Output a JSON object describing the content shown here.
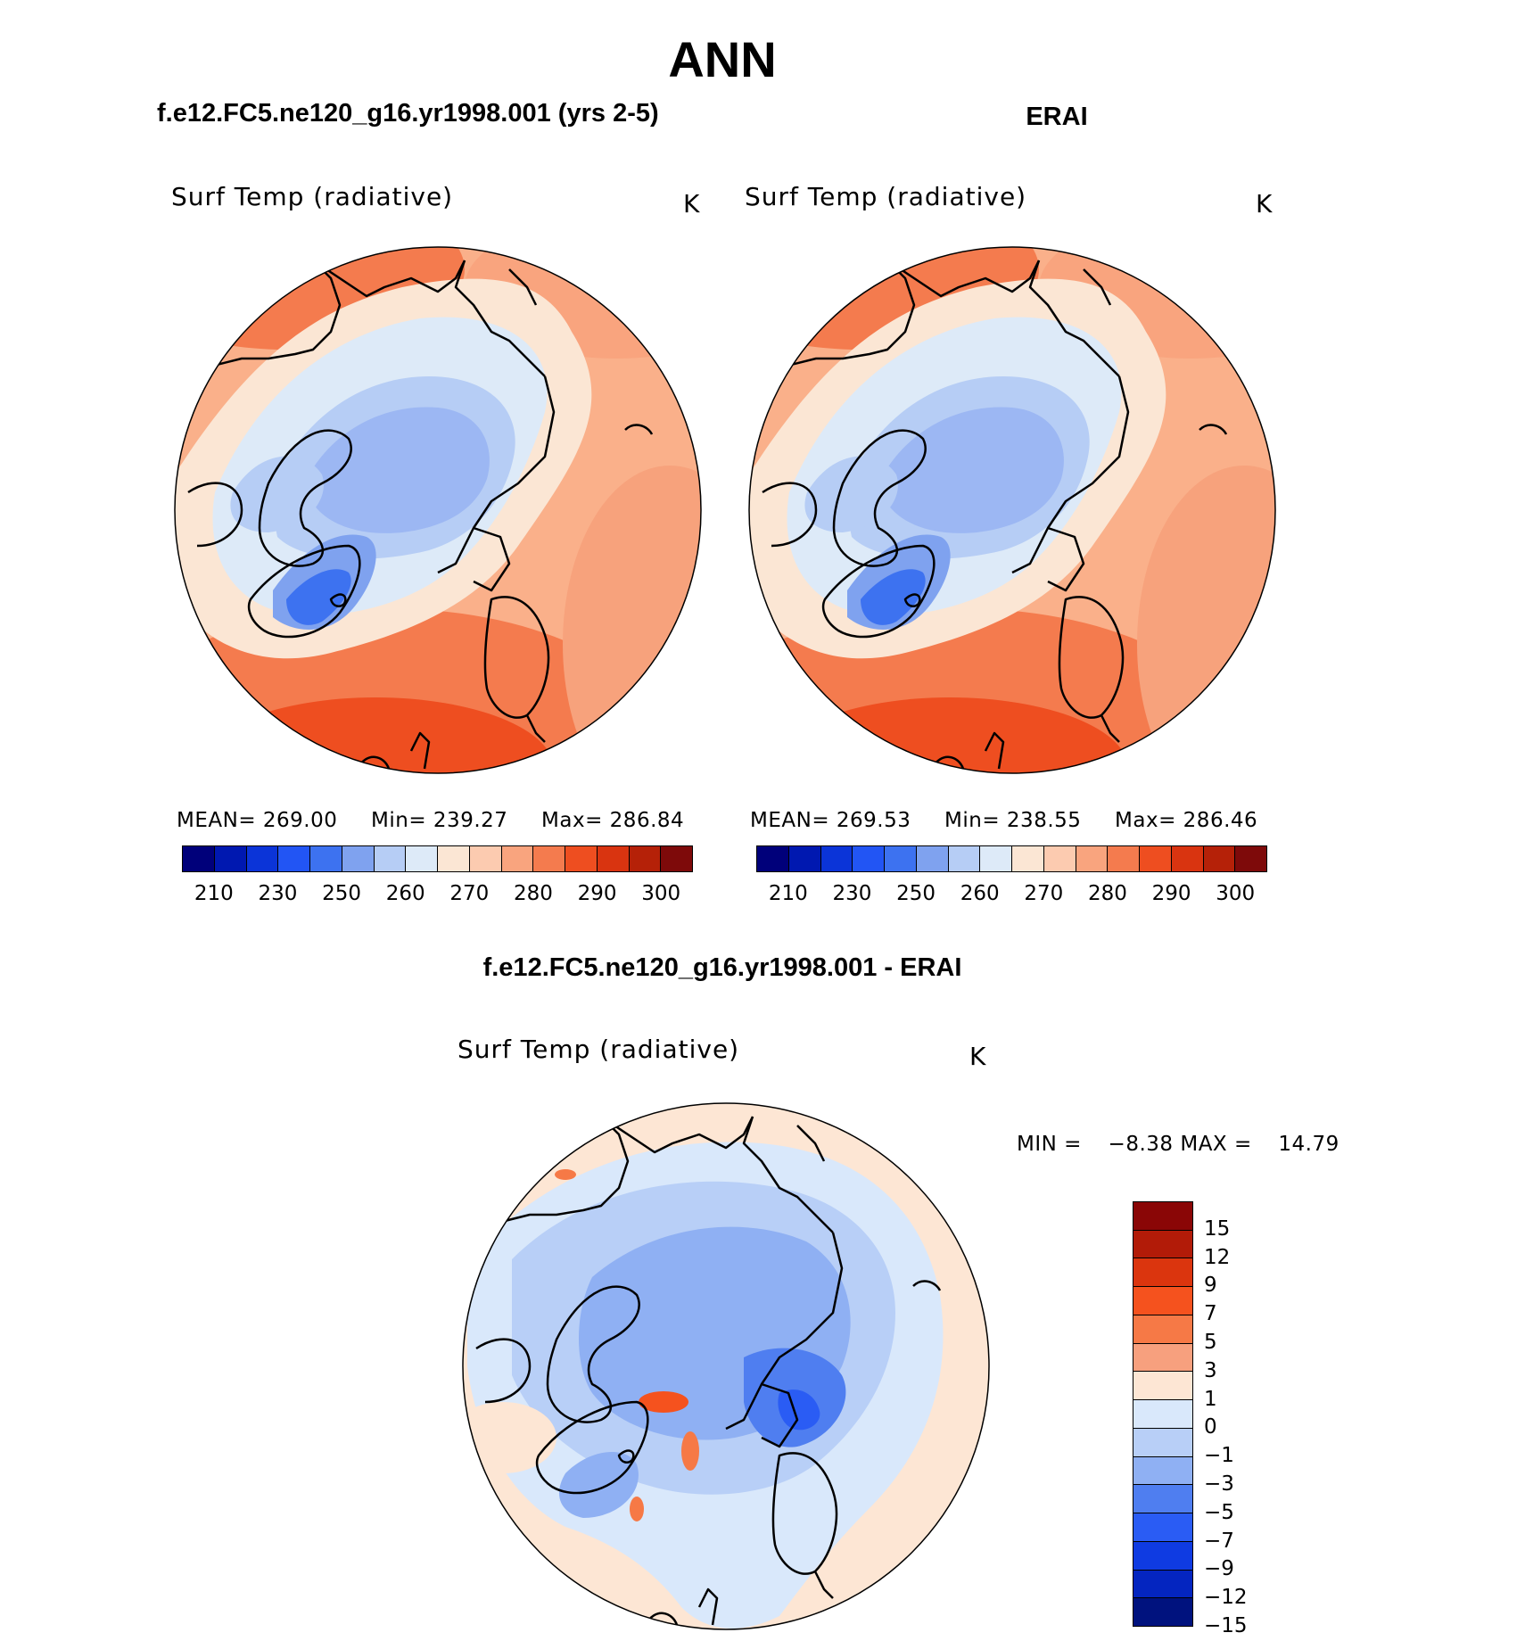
{
  "main_title": "ANN",
  "panels": [
    {
      "title": "f.e12.FC5.ne120_g16.yr1998.001 (yrs 2-5)",
      "variable": "Surf Temp (radiative)",
      "units": "K",
      "stats": {
        "mean_label": "MEAN=",
        "mean": "269.00",
        "min_label": "Min=",
        "min": "239.27",
        "max_label": "Max=",
        "max": "286.84"
      },
      "colorbar_ticks": [
        "210",
        "230",
        "250",
        "260",
        "270",
        "280",
        "290",
        "300"
      ]
    },
    {
      "title": "ERAI",
      "variable": "Surf Temp (radiative)",
      "units": "K",
      "stats": {
        "mean_label": "MEAN=",
        "mean": "269.53",
        "min_label": "Min=",
        "min": "238.55",
        "max_label": "Max=",
        "max": "286.46"
      },
      "colorbar_ticks": [
        "210",
        "230",
        "250",
        "260",
        "270",
        "280",
        "290",
        "300"
      ]
    }
  ],
  "difference": {
    "title": "f.e12.FC5.ne120_g16.yr1998.001 - ERAI",
    "variable": "Surf Temp (radiative)",
    "units": "K",
    "stats": {
      "min_label": "MIN =",
      "min": "−8.38",
      "max_label": "MAX =",
      "max": "14.79"
    },
    "colorbar_ticks": [
      "15",
      "12",
      "9",
      "7",
      "5",
      "3",
      "1",
      "0",
      "−1",
      "−3",
      "−5",
      "−7",
      "−9",
      "−12",
      "−15"
    ]
  },
  "colors": {
    "abs_palette": [
      "#00007a",
      "#0018b0",
      "#0b34d8",
      "#2255f4",
      "#3d72f0",
      "#7fa2ef",
      "#b6cdf5",
      "#ddeaf8",
      "#fbe6d4",
      "#fccbb0",
      "#f9a47e",
      "#f47b4e",
      "#ee4e20",
      "#d93410",
      "#b52108",
      "#7e0a0a"
    ],
    "diff_palette": [
      "#8a0606",
      "#b21b08",
      "#db350e",
      "#f5521e",
      "#f67946",
      "#f7a07e",
      "#fde6d4",
      "#d9e8fb",
      "#b8cff7",
      "#8fb0f3",
      "#4f7ef0",
      "#2a5cf4",
      "#0f3be2",
      "#0425c0",
      "#00127e"
    ]
  }
}
